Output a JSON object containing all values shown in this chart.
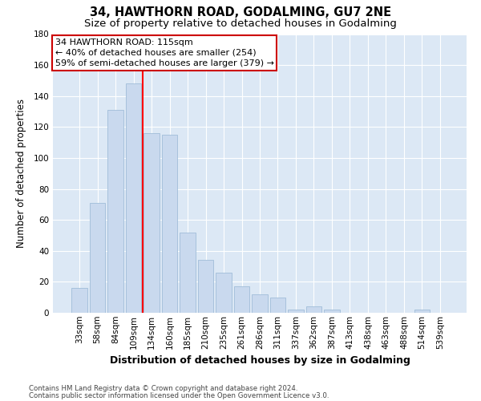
{
  "title": "34, HAWTHORN ROAD, GODALMING, GU7 2NE",
  "subtitle": "Size of property relative to detached houses in Godalming",
  "xlabel": "Distribution of detached houses by size in Godalming",
  "ylabel": "Number of detached properties",
  "categories": [
    "33sqm",
    "58sqm",
    "84sqm",
    "109sqm",
    "134sqm",
    "160sqm",
    "185sqm",
    "210sqm",
    "235sqm",
    "261sqm",
    "286sqm",
    "311sqm",
    "337sqm",
    "362sqm",
    "387sqm",
    "413sqm",
    "438sqm",
    "463sqm",
    "488sqm",
    "514sqm",
    "539sqm"
  ],
  "values": [
    16,
    71,
    131,
    148,
    116,
    115,
    52,
    34,
    26,
    17,
    12,
    10,
    2,
    4,
    2,
    0,
    0,
    0,
    0,
    2,
    0
  ],
  "bar_color": "#c9d9ee",
  "bar_edge_color": "#a0bdd8",
  "redline_label": "34 HAWTHORN ROAD: 115sqm",
  "annotation_line1": "← 40% of detached houses are smaller (254)",
  "annotation_line2": "59% of semi-detached houses are larger (379) →",
  "annotation_box_edge_color": "#cc0000",
  "ylim": [
    0,
    180
  ],
  "yticks": [
    0,
    20,
    40,
    60,
    80,
    100,
    120,
    140,
    160,
    180
  ],
  "footnote1": "Contains HM Land Registry data © Crown copyright and database right 2024.",
  "footnote2": "Contains public sector information licensed under the Open Government Licence v3.0.",
  "plot_bg_color": "#dce8f5",
  "fig_bg_color": "#ffffff",
  "grid_color": "#ffffff",
  "title_fontsize": 10.5,
  "subtitle_fontsize": 9.5,
  "ylabel_fontsize": 8.5,
  "xlabel_fontsize": 9,
  "tick_fontsize": 7.5,
  "annot_fontsize": 8
}
